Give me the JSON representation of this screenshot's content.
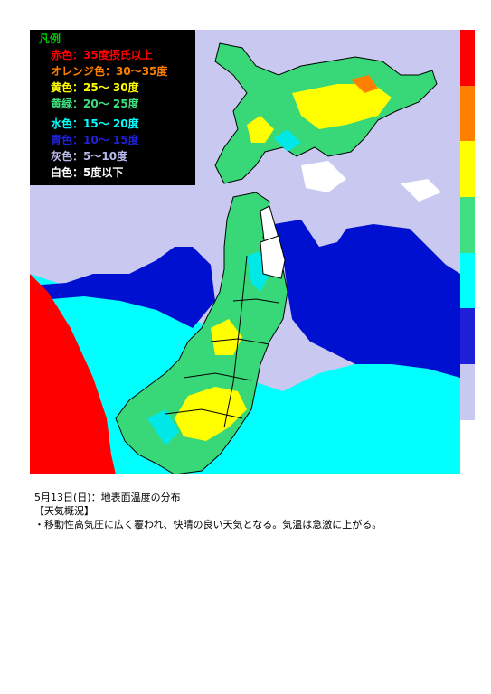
{
  "legend": {
    "title": "凡例",
    "title_color": "#00c800",
    "items": [
      {
        "label": "赤色：35度摂氏以上",
        "color": "#ff0000"
      },
      {
        "label": "オレンジ色：30～35度",
        "color": "#ff8000"
      },
      {
        "label": "黄色：25～ 30度",
        "color": "#ffff00"
      },
      {
        "label": "黄緑：20～ 25度",
        "color": "#40e080"
      },
      {
        "label": "水色：15～ 20度",
        "color": "#00ffff"
      },
      {
        "label": "青色：10～ 15度",
        "color": "#2020d8"
      },
      {
        "label": "灰色：5～10度",
        "color": "#b8b8e8"
      },
      {
        "label": "白色：5度以下",
        "color": "#ffffff"
      }
    ]
  },
  "scale_colors": [
    "#ff0000",
    "#ff8000",
    "#ffff00",
    "#40e080",
    "#00ffff",
    "#2020d8",
    "#c8c8f0"
  ],
  "map_colors": {
    "land_gray": "#c8c8f0",
    "sea_blue": "#0010d0",
    "sea_cyan": "#00ffff",
    "hot_red": "#ff0000",
    "land_green": "#38d878",
    "land_yellow": "#ffff00",
    "land_cyan": "#00e8e8",
    "snow_white": "#ffffff",
    "outline": "#000000"
  },
  "caption": {
    "line1": "5月13日(日)：地表面温度の分布",
    "line2": "【天気概況】",
    "line3": "・移動性高気圧に広く覆われ、快晴の良い天気となる。気温は急激に上がる。"
  }
}
